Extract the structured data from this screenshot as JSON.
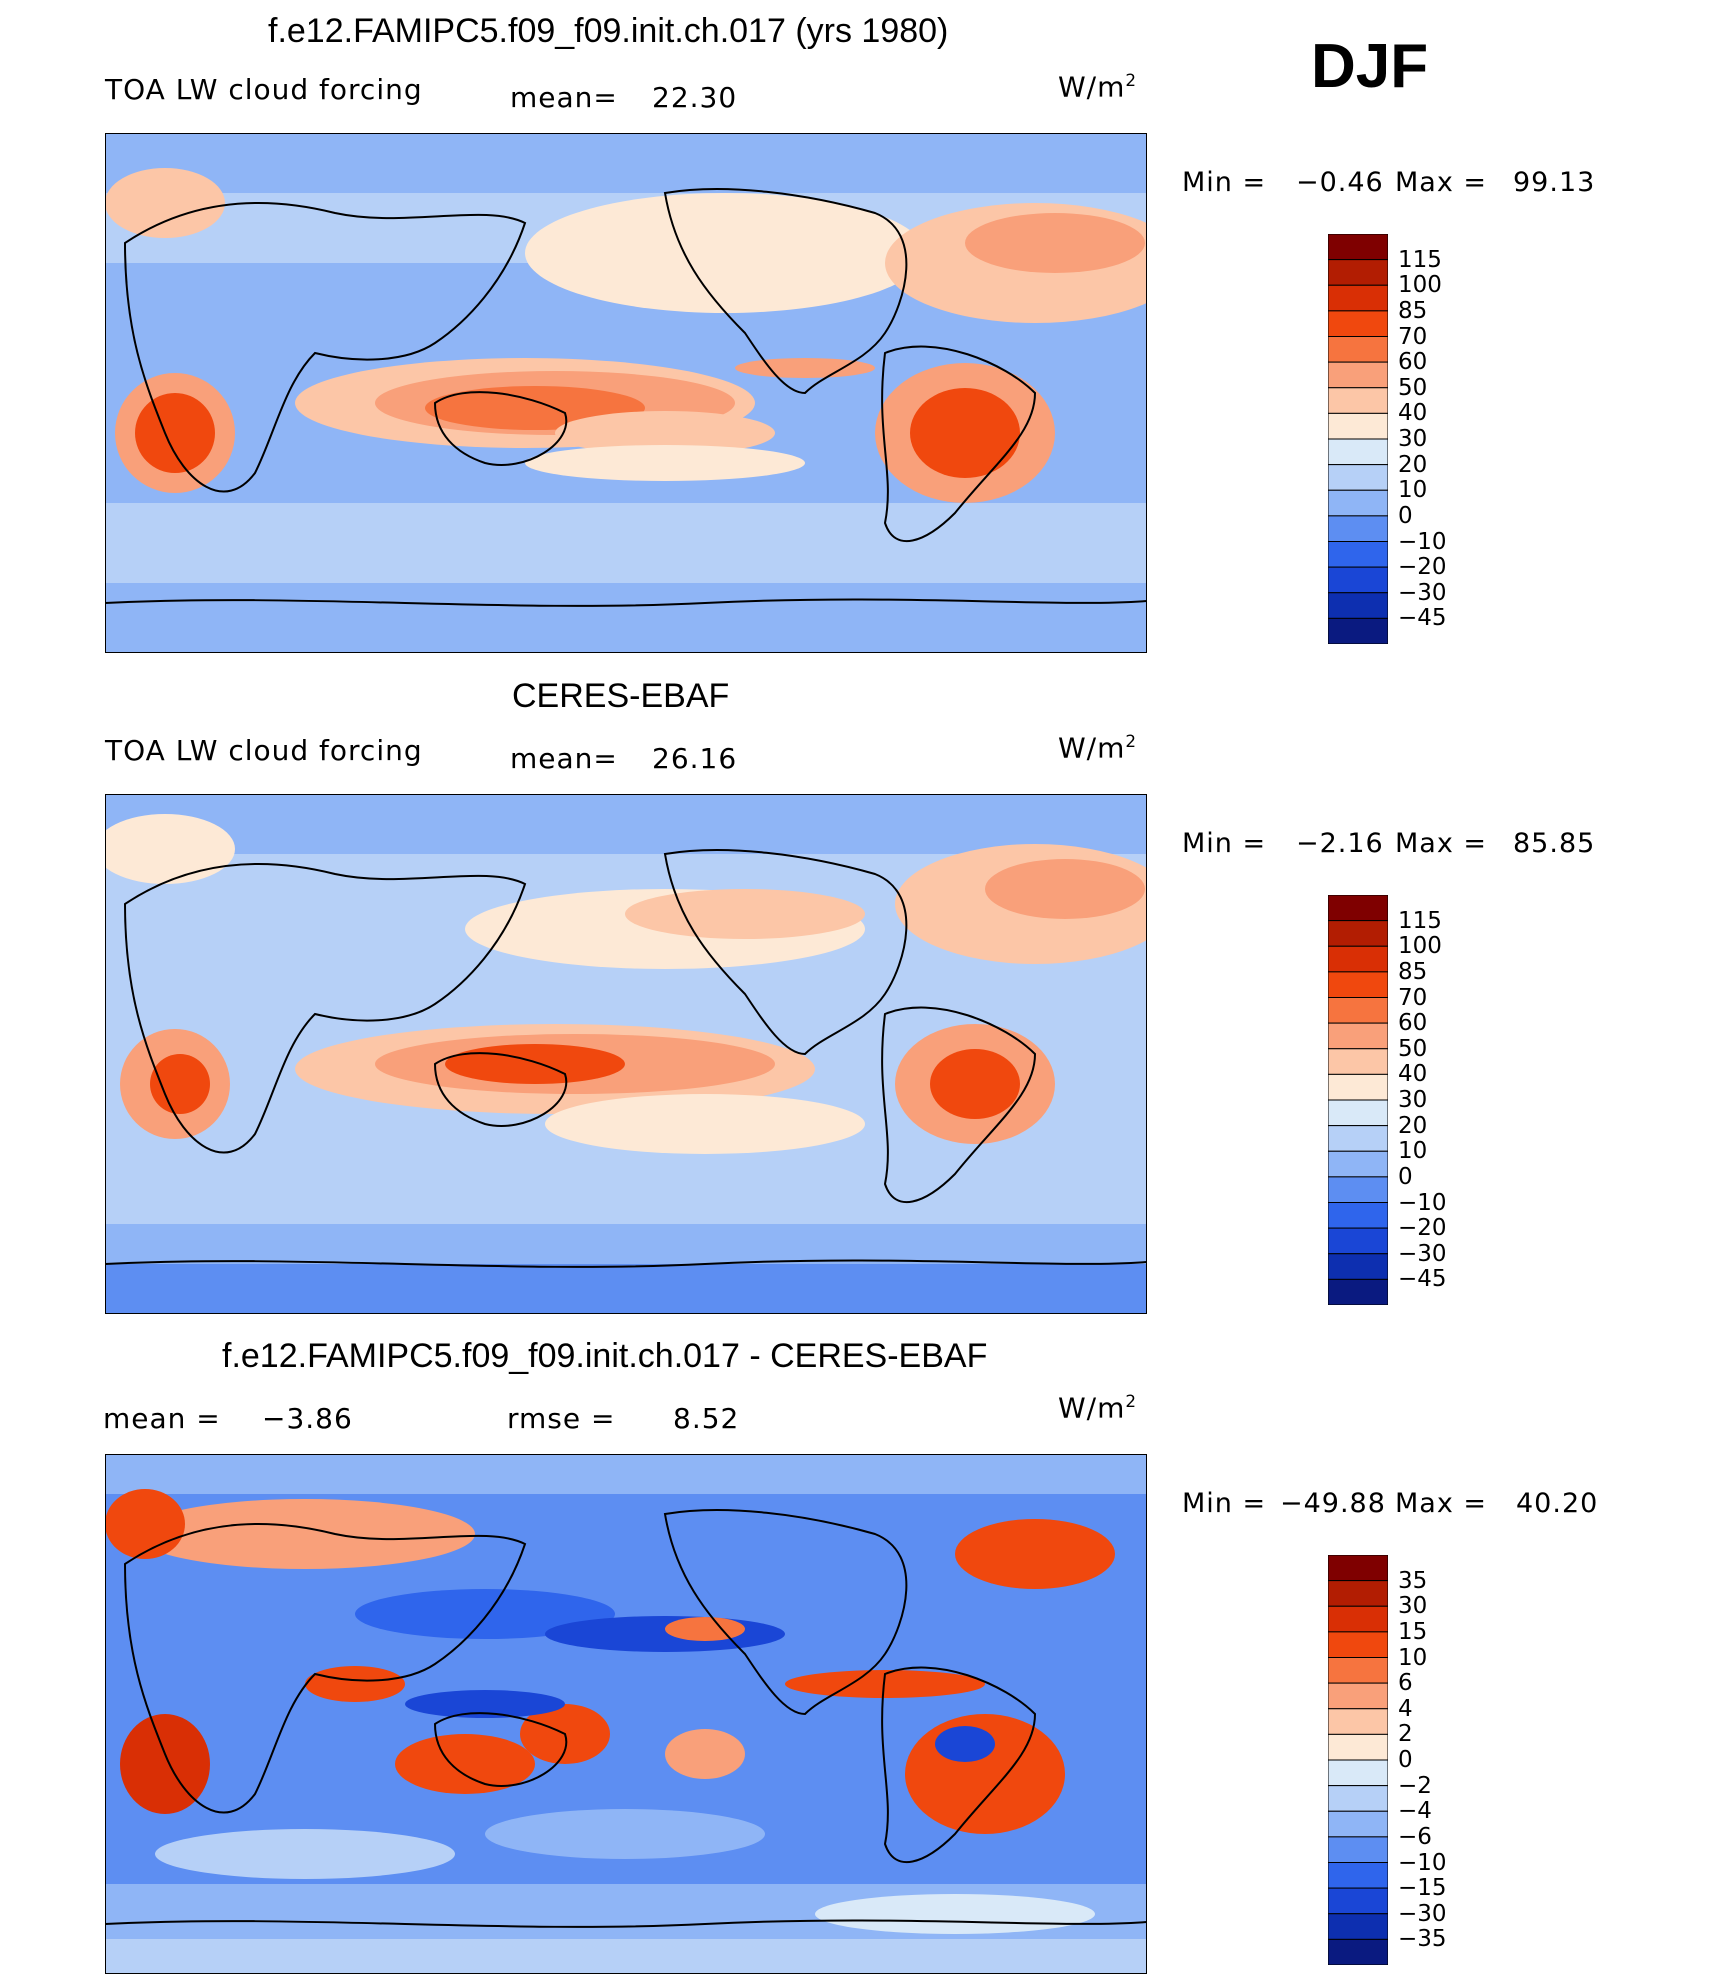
{
  "season": "DJF",
  "panels": [
    {
      "title": "f.e12.FAMIPC5.f09_f09.init.ch.017 (yrs 1980)",
      "left_label": "TOA LW cloud forcing",
      "stat1_label": "mean=",
      "stat1_value": "22.30",
      "units": "W/m",
      "units_exp": "2",
      "min_label": "Min =",
      "min_value": "−0.46",
      "max_label": "Max =",
      "max_value": "99.13"
    },
    {
      "title": "CERES-EBAF",
      "left_label": "TOA LW cloud forcing",
      "stat1_label": "mean=",
      "stat1_value": "26.16",
      "units": "W/m",
      "units_exp": "2",
      "min_label": "Min =",
      "min_value": "−2.16",
      "max_label": "Max =",
      "max_value": "85.85"
    },
    {
      "title": "f.e12.FAMIPC5.f09_f09.init.ch.017 - CERES-EBAF",
      "left_label": "mean =",
      "left_value": "−3.86",
      "stat1_label": "rmse =",
      "stat1_value": "8.52",
      "units": "W/m",
      "units_exp": "2",
      "min_label": "Min =",
      "min_value": "−49.88",
      "max_label": "Max =",
      "max_value": "40.20"
    }
  ],
  "colorbars": {
    "abs": {
      "labels": [
        "115",
        "100",
        "85",
        "70",
        "60",
        "50",
        "40",
        "30",
        "20",
        "10",
        "0",
        "−10",
        "−20",
        "−30",
        "−45"
      ],
      "colors": [
        "#7f0000",
        "#b21d02",
        "#d92f05",
        "#f0480e",
        "#f6743f",
        "#f9a07a",
        "#fcc6a7",
        "#fde9d6",
        "#d9e9f8",
        "#b6d0f7",
        "#8fb5f6",
        "#5d8ef2",
        "#2f65ec",
        "#1a46d6",
        "#0d2fb0",
        "#0a1a80"
      ]
    },
    "diff": {
      "labels": [
        "35",
        "30",
        "15",
        "10",
        "6",
        "4",
        "2",
        "0",
        "−2",
        "−4",
        "−6",
        "−10",
        "−15",
        "−30",
        "−35"
      ],
      "colors": [
        "#7f0000",
        "#b21d02",
        "#d92f05",
        "#f0480e",
        "#f6743f",
        "#f9a07a",
        "#fcc6a7",
        "#fde9d6",
        "#d9e9f8",
        "#b6d0f7",
        "#8fb5f6",
        "#5d8ef2",
        "#2f65ec",
        "#1a46d6",
        "#0d2fb0",
        "#0a1a80"
      ]
    }
  }
}
